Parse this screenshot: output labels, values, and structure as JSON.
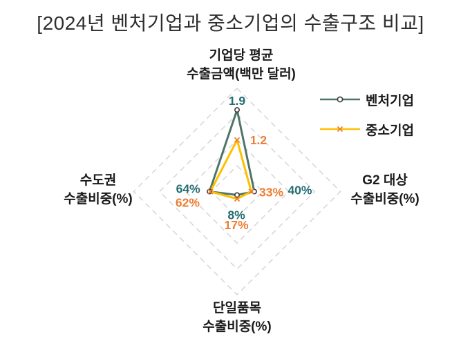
{
  "title": "[2024년 벤처기업과 중소기업의 수출구조 비교]",
  "chart_data": {
    "type": "radar",
    "title": "[2024년 벤처기업과 중소기업의 수출구조 비교]",
    "grid": "dashed-diamond",
    "rings": 4,
    "grid_color": "#D8D8D8",
    "legend_position": "right",
    "axes": [
      {
        "position": "top",
        "label_lines": [
          "기업당 평균",
          "수출금액(백만 달러)"
        ],
        "max": 2.4
      },
      {
        "position": "right",
        "label_lines": [
          "G2 대상",
          "수출비중(%)"
        ],
        "max": 240
      },
      {
        "position": "bottom",
        "label_lines": [
          "단일품목",
          "수출비중(%)"
        ],
        "max": 240
      },
      {
        "position": "left",
        "label_lines": [
          "수도권",
          "수출비중(%)"
        ],
        "max": 240
      }
    ],
    "series": [
      {
        "name": "벤처기업",
        "line_color": "#4E7568",
        "marker": "circle",
        "marker_stroke": "#3A3A3A",
        "values": [
          1.9,
          40,
          8,
          64
        ],
        "point_labels": [
          "1.9",
          "40%",
          "8%",
          "64%"
        ],
        "label_color": "#256D73"
      },
      {
        "name": "중소기업",
        "line_color": "#FFC000",
        "marker": "x",
        "marker_stroke": "#ED7D31",
        "values": [
          1.2,
          33,
          17,
          62
        ],
        "point_labels": [
          "1.2",
          "33%",
          "17%",
          "62%"
        ],
        "label_color": "#ED7D31"
      }
    ]
  }
}
